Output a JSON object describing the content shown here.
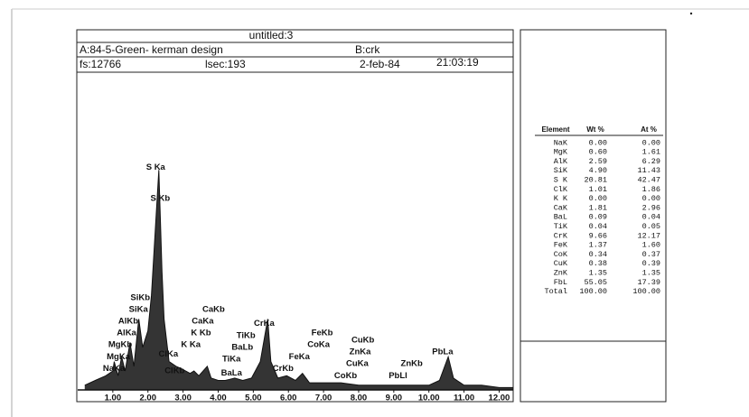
{
  "header": {
    "title": "untitled:3",
    "sample": "A:84-5-Green- kerman design",
    "ref": "B:crk",
    "fs": "fs:12766",
    "lsec": "lsec:193",
    "date": "2-feb-84",
    "time": "21:03:19"
  },
  "table": {
    "columns": [
      "Element",
      "Wt %",
      "At %"
    ],
    "rows": [
      [
        "NaK",
        "0.00",
        "0.00"
      ],
      [
        "MgK",
        "0.60",
        "1.61"
      ],
      [
        "AlK",
        "2.59",
        "6.29"
      ],
      [
        "SiK",
        "4.90",
        "11.43"
      ],
      [
        "S K",
        "20.81",
        "42.47"
      ],
      [
        "ClK",
        "1.01",
        "1.86"
      ],
      [
        "K K",
        "0.00",
        "0.00"
      ],
      [
        "CaK",
        "1.81",
        "2.96"
      ],
      [
        "BaL",
        "0.09",
        "0.04"
      ],
      [
        "TiK",
        "0.04",
        "0.05"
      ],
      [
        "CrK",
        "9.66",
        "12.17"
      ],
      [
        "FeK",
        "1.37",
        "1.60"
      ],
      [
        "CoK",
        "0.34",
        "0.37"
      ],
      [
        "CuK",
        "0.38",
        "0.39"
      ],
      [
        "ZnK",
        "1.35",
        "1.35"
      ],
      [
        "FbL",
        "55.05",
        "17.39"
      ],
      [
        "Total",
        "100.00",
        "100.00"
      ]
    ]
  },
  "chart_data": {
    "type": "line",
    "color": "#111111",
    "x": [
      0.2,
      0.5,
      0.8,
      1.0,
      1.04,
      1.15,
      1.25,
      1.35,
      1.49,
      1.6,
      1.74,
      1.85,
      2.0,
      2.1,
      2.31,
      2.4,
      2.46,
      2.6,
      2.8,
      2.95,
      3.2,
      3.31,
      3.45,
      3.69,
      3.8,
      4.0,
      4.2,
      4.47,
      4.7,
      4.95,
      5.2,
      5.41,
      5.5,
      5.7,
      5.95,
      6.2,
      6.4,
      6.6,
      7.0,
      7.5,
      8.0,
      8.6,
      9.0,
      9.5,
      10.0,
      10.3,
      10.55,
      10.7,
      11.0,
      11.5,
      12.0,
      12.4
    ],
    "values": [
      2,
      4,
      6,
      8,
      12,
      6,
      14,
      8,
      20,
      10,
      30,
      18,
      25,
      40,
      93,
      50,
      30,
      12,
      10,
      9,
      7,
      8,
      6,
      10,
      5,
      4,
      4,
      5,
      4,
      5,
      12,
      30,
      12,
      5,
      6,
      4,
      7,
      3,
      3,
      3,
      2,
      2,
      2,
      2,
      2,
      4,
      14,
      5,
      2,
      2,
      1,
      1
    ],
    "xlim": [
      0,
      12.4
    ],
    "ylim": [
      0,
      100
    ],
    "xticks": [
      {
        "value": 1,
        "label": "1.00"
      },
      {
        "value": 2,
        "label": "2.00"
      },
      {
        "value": 3,
        "label": "3.00"
      },
      {
        "value": 4,
        "label": "4.00"
      },
      {
        "value": 5,
        "label": "5.00"
      },
      {
        "value": 6,
        "label": "6.00"
      },
      {
        "value": 7,
        "label": "7.00"
      },
      {
        "value": 8,
        "label": "8.00"
      },
      {
        "value": 9,
        "label": "9.00"
      },
      {
        "value": 10,
        "label": "10.00"
      },
      {
        "value": 11,
        "label": "11.00"
      },
      {
        "value": 12,
        "label": "12.00"
      }
    ],
    "annotations": [
      {
        "text": "S Ka",
        "x": 2.22,
        "y": 94
      },
      {
        "text": "S Kb",
        "x": 2.35,
        "y": 81
      },
      {
        "text": "SiKb",
        "x": 1.78,
        "y": 39
      },
      {
        "text": "SiKa",
        "x": 1.73,
        "y": 34
      },
      {
        "text": "AlKb",
        "x": 1.44,
        "y": 29
      },
      {
        "text": "AlKa",
        "x": 1.39,
        "y": 24
      },
      {
        "text": "MgKb",
        "x": 1.21,
        "y": 19
      },
      {
        "text": "MgKa",
        "x": 1.16,
        "y": 14
      },
      {
        "text": "NaKa",
        "x": 1.03,
        "y": 9
      },
      {
        "text": "ClKa",
        "x": 2.58,
        "y": 15
      },
      {
        "text": "ClKb",
        "x": 2.76,
        "y": 8
      },
      {
        "text": "CaKb",
        "x": 3.87,
        "y": 34
      },
      {
        "text": "CaKa",
        "x": 3.56,
        "y": 29
      },
      {
        "text": "K Kb",
        "x": 3.51,
        "y": 24
      },
      {
        "text": "K Ka",
        "x": 3.22,
        "y": 19
      },
      {
        "text": "TiKb",
        "x": 4.79,
        "y": 23
      },
      {
        "text": "BaLb",
        "x": 4.69,
        "y": 18
      },
      {
        "text": "TiKa",
        "x": 4.38,
        "y": 13
      },
      {
        "text": "BaLa",
        "x": 4.38,
        "y": 7
      },
      {
        "text": "CrKa",
        "x": 5.31,
        "y": 28
      },
      {
        "text": "CrKb",
        "x": 5.85,
        "y": 9
      },
      {
        "text": "FeKb",
        "x": 6.96,
        "y": 24
      },
      {
        "text": "CoKa",
        "x": 6.86,
        "y": 19
      },
      {
        "text": "FeKa",
        "x": 6.31,
        "y": 14
      },
      {
        "text": "CuKb",
        "x": 8.12,
        "y": 21
      },
      {
        "text": "ZnKa",
        "x": 8.04,
        "y": 16
      },
      {
        "text": "CuKa",
        "x": 7.96,
        "y": 11
      },
      {
        "text": "CoKb",
        "x": 7.63,
        "y": 6
      },
      {
        "text": "ZnKb",
        "x": 9.51,
        "y": 11
      },
      {
        "text": "PbLl",
        "x": 9.12,
        "y": 6
      },
      {
        "text": "PbLa",
        "x": 10.39,
        "y": 16
      }
    ]
  }
}
